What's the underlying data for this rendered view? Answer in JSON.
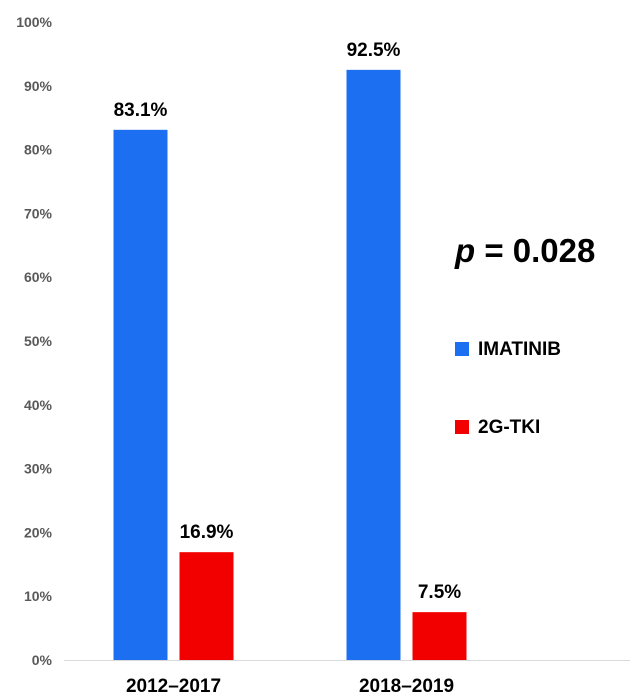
{
  "chart_data": {
    "type": "bar",
    "categories": [
      "2012–2017",
      "2018–2019"
    ],
    "series": [
      {
        "name": "IMATINIB",
        "values": [
          83.1,
          92.5
        ],
        "labels": [
          "83.1%",
          "92.5%"
        ],
        "color": "#1d6ff2"
      },
      {
        "name": "2G-TKI",
        "values": [
          16.9,
          7.5
        ],
        "labels": [
          "16.9%",
          "7.5%"
        ],
        "color": "#f20000"
      }
    ],
    "ylim": [
      0,
      100
    ],
    "yticks": [
      "0%",
      "10%",
      "20%",
      "30%",
      "40%",
      "50%",
      "60%",
      "70%",
      "80%",
      "90%",
      "100%"
    ],
    "grid": false,
    "legend_position": "right",
    "annotation": {
      "italic": "p",
      "text": " = 0.028"
    }
  }
}
